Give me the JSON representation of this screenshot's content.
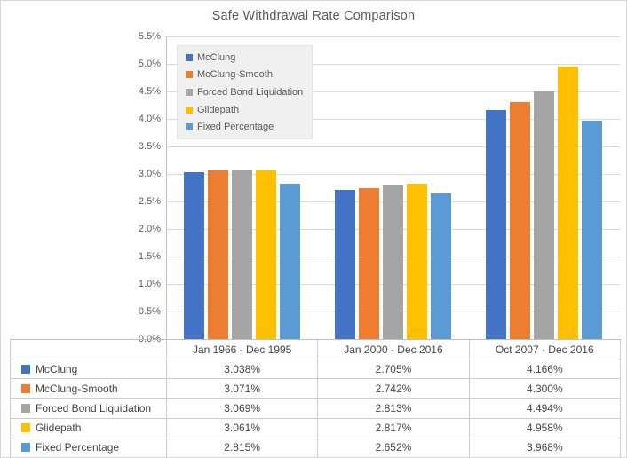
{
  "title": "Safe Withdrawal Rate Comparison",
  "chart_data": {
    "type": "bar",
    "title": "Safe Withdrawal Rate Comparison",
    "categories": [
      "Jan 1966 - Dec 1995",
      "Jan 2000 - Dec 2016",
      "Oct 2007 - Dec 2016"
    ],
    "series": [
      {
        "name": "McClung",
        "color": "#4472C4",
        "values": [
          3.038,
          2.705,
          4.166
        ]
      },
      {
        "name": "McClung-Smooth",
        "color": "#ED7D31",
        "values": [
          3.071,
          2.742,
          4.3
        ]
      },
      {
        "name": "Forced Bond Liquidation",
        "color": "#A5A5A5",
        "values": [
          3.069,
          2.813,
          4.494
        ]
      },
      {
        "name": "Glidepath",
        "color": "#FFC000",
        "values": [
          3.061,
          2.817,
          4.958
        ]
      },
      {
        "name": "Fixed Percentage",
        "color": "#5B9BD5",
        "values": [
          2.815,
          2.652,
          3.968
        ]
      }
    ],
    "xlabel": "",
    "ylabel": "",
    "ylim": [
      0,
      5.5
    ],
    "ytick_step": 0.5,
    "ytick_labels": [
      "5.5%",
      "5.0%",
      "4.5%",
      "4.0%",
      "3.5%",
      "3.0%",
      "2.5%",
      "2.0%",
      "1.5%",
      "1.0%",
      "0.5%",
      "0.0%"
    ],
    "value_suffix": "%",
    "value_decimals": 3,
    "grid": true,
    "legend_position": "top-left-inside",
    "data_table_shown": true
  },
  "colors": {
    "gridline": "#D9D9D9",
    "axis_line": "#BFBFBF",
    "table_border": "#CCCCCC",
    "text": "#595959",
    "table_text": "#444444",
    "legend_background": "#F0F0F0",
    "background": "#FFFFFF"
  }
}
